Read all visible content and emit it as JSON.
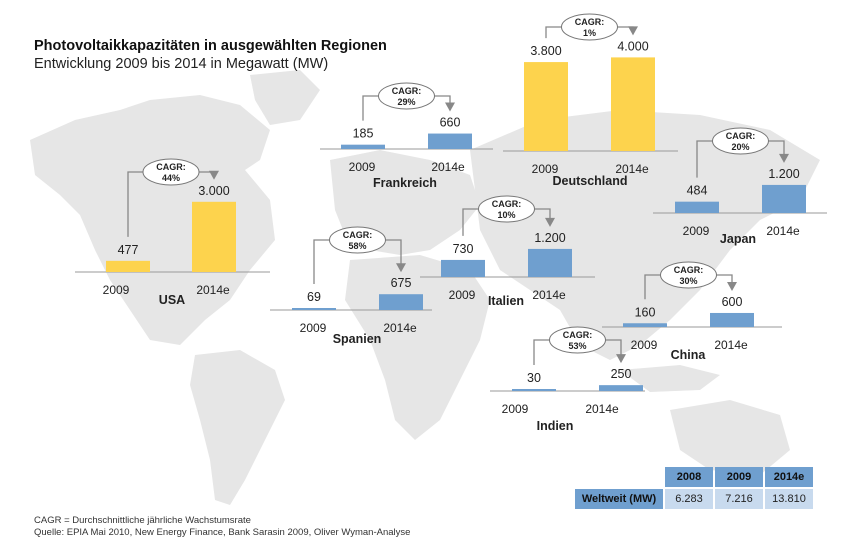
{
  "header": {
    "title": "Photovoltaikkapazitäten in ausgewählten Regionen",
    "subtitle": "Entwicklung 2009 bis 2014 in Megawatt (MW)"
  },
  "colors": {
    "highlight_bar": "#fdd34d",
    "standard_bar": "#6f9fcf",
    "map": "#e6e6e6",
    "axis": "#999999",
    "table_header": "#6f9fcf",
    "table_cell": "#c8daee"
  },
  "chart_data": {
    "type": "bar",
    "title": "Photovoltaikkapazitäten in ausgewählten Regionen",
    "subtitle": "Entwicklung 2009 bis 2014 in Megawatt (MW)",
    "unit": "MW",
    "categories": [
      "2009",
      "2014e"
    ],
    "cagr_label": "CAGR:",
    "regions": [
      {
        "name": "USA",
        "values": [
          477,
          3000
        ],
        "labels": [
          "477",
          "3.000"
        ],
        "cagr": "44%",
        "highlight": true
      },
      {
        "name": "Frankreich",
        "values": [
          185,
          660
        ],
        "labels": [
          "185",
          "660"
        ],
        "cagr": "29%",
        "highlight": false
      },
      {
        "name": "Deutschland",
        "values": [
          3800,
          4000
        ],
        "labels": [
          "3.800",
          "4.000"
        ],
        "cagr": "1%",
        "highlight": true
      },
      {
        "name": "Japan",
        "values": [
          484,
          1200
        ],
        "labels": [
          "484",
          "1.200"
        ],
        "cagr": "20%",
        "highlight": false
      },
      {
        "name": "Spanien",
        "values": [
          69,
          675
        ],
        "labels": [
          "69",
          "675"
        ],
        "cagr": "58%",
        "highlight": false
      },
      {
        "name": "Italien",
        "values": [
          730,
          1200
        ],
        "labels": [
          "730",
          "1.200"
        ],
        "cagr": "10%",
        "highlight": false
      },
      {
        "name": "China",
        "values": [
          160,
          600
        ],
        "labels": [
          "160",
          "600"
        ],
        "cagr": "30%",
        "highlight": false
      },
      {
        "name": "Indien",
        "values": [
          30,
          250
        ],
        "labels": [
          "30",
          "250"
        ],
        "cagr": "53%",
        "highlight": false
      }
    ]
  },
  "world_table": {
    "columns": [
      "2008",
      "2009",
      "2014e"
    ],
    "row_label": "Weltweit (MW)",
    "values": [
      "6.283",
      "7.216",
      "13.810"
    ]
  },
  "footnotes": {
    "cagr_definition": "CAGR = Durchschnittliche jährliche Wachstumsrate",
    "source": "Quelle: EPIA Mai 2010, New Energy Finance, Bank Sarasin 2009,  Oliver Wyman-Analyse"
  }
}
